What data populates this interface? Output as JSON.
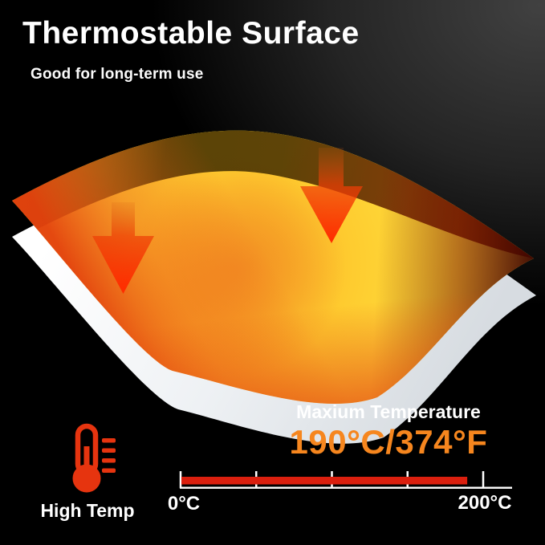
{
  "header": {
    "title": "Thermostable Surface",
    "subtitle": "Good for long-term use"
  },
  "illustration": {
    "heated_sheet": {
      "surface_color": "#ffd935",
      "center_glow_color": "#f39a21",
      "hot_edge_color": "#e2571a",
      "dark_edge_color": "#55380a",
      "right_tip_color": "#5a0f00"
    },
    "base_sheet": {
      "color": "#e9edf1"
    },
    "heat_arrows": {
      "count": 2,
      "direction": "down",
      "color": "#ff2d00"
    }
  },
  "max_temperature": {
    "label": "Maxium Temperature",
    "value": "190°C/374°F",
    "value_color": "#f6861e"
  },
  "high_temp_badge": {
    "label": "High Temp",
    "icon_color": "#e6340f"
  },
  "temperature_scale": {
    "min": 0,
    "max": 200,
    "value": 190,
    "min_label": "0°C",
    "max_label": "200°C",
    "bar_color": "#da1f0e",
    "axis_color": "#ffffff",
    "tick_count": 5
  }
}
